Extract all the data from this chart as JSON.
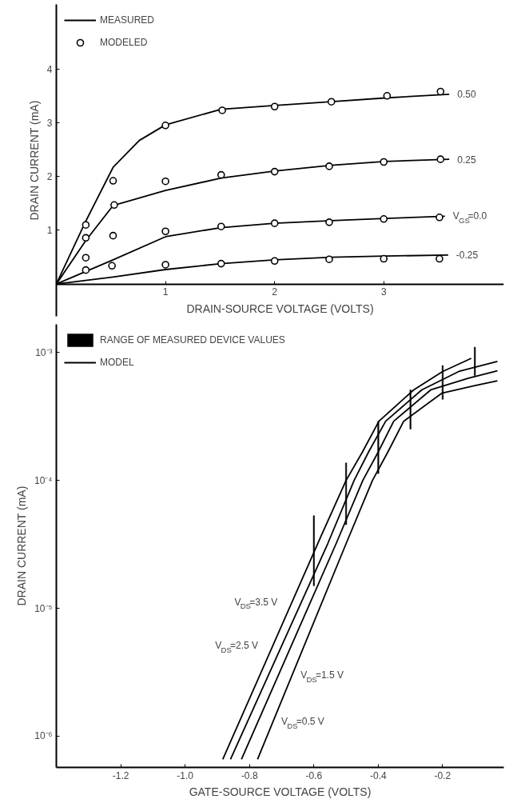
{
  "chart_data": [
    {
      "type": "line",
      "xlabel": "DRAIN-SOURCE VOLTAGE (VOLTS)",
      "ylabel": "DRAIN CURRENT (mA)",
      "xlim": [
        0,
        4.1
      ],
      "ylim": [
        -0.6,
        5.2
      ],
      "xticks": [
        1,
        2,
        3
      ],
      "yticks": [
        1,
        2,
        3,
        4
      ],
      "grid": false,
      "legend": "top left",
      "line_style": "solid",
      "series": [
        {
          "name": "MEASURED",
          "marker": "none",
          "color": "#000000",
          "x": [
            0,
            0.27,
            0.52,
            0.76,
            1.0,
            1.51,
            2.0,
            2.52,
            3.01,
            3.6
          ],
          "values": [
            0,
            1.17,
            2.17,
            2.67,
            2.96,
            3.25,
            3.32,
            3.39,
            3.46,
            3.53
          ]
        },
        {
          "marker": "none",
          "color": "#000000",
          "x": [
            0,
            0.27,
            0.52,
            1.0,
            1.51,
            2.0,
            2.52,
            3.01,
            3.6
          ],
          "values": [
            0,
            0.81,
            1.46,
            1.74,
            1.97,
            2.1,
            2.21,
            2.28,
            2.32
          ]
        },
        {
          "marker": "none",
          "color": "#000000",
          "x": [
            0,
            0.52,
            1.0,
            1.51,
            2.0,
            2.52,
            3.01,
            3.56
          ],
          "values": [
            0,
            0.45,
            0.88,
            1.05,
            1.13,
            1.18,
            1.22,
            1.26
          ]
        },
        {
          "marker": "none",
          "color": "#000000",
          "x": [
            0,
            0.52,
            1.0,
            1.51,
            2.0,
            2.52,
            3.01,
            3.59
          ],
          "values": [
            0,
            0.13,
            0.27,
            0.38,
            0.45,
            0.5,
            0.52,
            0.54
          ]
        },
        {
          "name": "MODELED",
          "type": "scatter",
          "marker": "circle",
          "color": "#000000",
          "x": [
            0.27,
            0.52,
            1.0,
            1.52,
            2.0,
            2.52,
            3.03,
            3.52
          ],
          "values": [
            1.1,
            1.92,
            2.95,
            3.23,
            3.3,
            3.39,
            3.5,
            3.58
          ]
        },
        {
          "type": "scatter",
          "marker": "circle",
          "color": "#000000",
          "x": [
            0.27,
            0.53,
            1.0,
            1.51,
            2.0,
            2.5,
            3.0,
            3.52
          ],
          "values": [
            0.86,
            1.47,
            1.91,
            2.03,
            2.09,
            2.19,
            2.27,
            2.32
          ]
        },
        {
          "type": "scatter",
          "marker": "circle",
          "color": "#000000",
          "x": [
            0.27,
            0.52,
            1.0,
            1.51,
            2.0,
            2.5,
            3.0,
            3.51
          ],
          "values": [
            0.49,
            0.9,
            0.98,
            1.07,
            1.13,
            1.15,
            1.21,
            1.24
          ]
        },
        {
          "type": "scatter",
          "marker": "circle",
          "color": "#000000",
          "x": [
            0.27,
            0.51,
            1.0,
            1.51,
            2.0,
            2.5,
            3.0,
            3.51
          ],
          "values": [
            0.26,
            0.34,
            0.36,
            0.38,
            0.43,
            0.46,
            0.47,
            0.47
          ]
        }
      ],
      "annotations": [
        {
          "text": "0.50",
          "x": 3.6,
          "y": 3.53
        },
        {
          "text": "0.25",
          "x": 3.6,
          "y": 2.32
        },
        {
          "text": "V$_{GS}$=0.0",
          "x": 3.56,
          "y": 1.26
        },
        {
          "text": "-0.25",
          "x": 3.59,
          "y": 0.54
        }
      ]
    },
    {
      "type": "line",
      "xlabel": "GATE-SOURCE VOLTAGE (VOLTS)",
      "ylabel": "DRAIN CURRENT (mA)",
      "log": "y",
      "xlim": [
        -1.4,
        -0.01
      ],
      "ylim": [
        5.7e-07,
        0.00166
      ],
      "xticks": [
        {
          "value": -1.2,
          "label": "-1.2"
        },
        {
          "value": -1.0,
          "label": "-1.0"
        },
        {
          "value": -0.8,
          "label": "-0.8"
        },
        {
          "value": -0.6,
          "label": "-0.6"
        },
        {
          "value": -0.4,
          "label": "-0.4"
        },
        {
          "value": -0.2,
          "label": "-0.2"
        }
      ],
      "yticks": [
        {
          "value": 1e-06,
          "label": "10⁻⁶"
        },
        {
          "value": 1e-05,
          "label": "10⁻⁵"
        },
        {
          "value": 0.0001,
          "label": "10⁻⁴"
        },
        {
          "value": 0.001,
          "label": "10⁻³"
        }
      ],
      "grid": false,
      "legend": "top left",
      "line_style": "solid",
      "series": [
        {
          "name": "RANGE OF MEASURED DEVICE VALUES",
          "type": "bar",
          "base": [
            1.5e-05,
            4.5e-05,
            0.000113,
            0.000252,
            0.00043,
            0.00066
          ],
          "color": "#000000",
          "x": [
            -0.6,
            -0.5,
            -0.4,
            -0.3,
            -0.2,
            -0.1
          ],
          "values": [
            3.8e-05,
            9.2e-05,
            0.000175,
            0.000258,
            0.00036,
            0.00044
          ]
        },
        {
          "name": "MODEL",
          "marker": "none",
          "color": "#000000",
          "x": [
            -0.883,
            -0.577,
            -0.5,
            -0.449,
            -0.398,
            -0.29,
            -0.2,
            -0.111
          ],
          "values": [
            6.6e-07,
            3.7e-05,
            0.0001,
            0.000167,
            0.00029,
            0.00051,
            0.00071,
            0.0009
          ]
        },
        {
          "marker": "none",
          "color": "#000000",
          "x": [
            -0.859,
            -0.557,
            -0.475,
            -0.43,
            -0.377,
            -0.265,
            -0.15,
            -0.03
          ],
          "values": [
            6.6e-07,
            3.2e-05,
            0.0001,
            0.000167,
            0.00029,
            0.00051,
            0.00071,
            0.00085
          ]
        },
        {
          "marker": "none",
          "color": "#000000",
          "x": [
            -0.825,
            -0.531,
            -0.448,
            -0.4,
            -0.352,
            -0.237,
            -0.12,
            -0.03
          ],
          "values": [
            6.6e-07,
            3.2e-05,
            0.0001,
            0.000167,
            0.00029,
            0.00051,
            0.00063,
            0.00072
          ]
        },
        {
          "marker": "none",
          "color": "#000000",
          "x": [
            -0.775,
            -0.5,
            -0.418,
            -0.37,
            -0.321,
            -0.203,
            -0.1,
            -0.03
          ],
          "values": [
            6.6e-07,
            3.2e-05,
            0.0001,
            0.000167,
            0.00029,
            0.00048,
            0.00055,
            0.0006
          ]
        }
      ],
      "annotations": [
        {
          "text": "V$_{DS}$=3.5 V",
          "x": -0.668,
          "y": 1.12e-05
        },
        {
          "text": "V$_{DS}$=2.5 V",
          "x": -0.728,
          "y": 5.1e-06
        },
        {
          "text": "V$_{DS}$=1.5 V",
          "x": -0.666,
          "y": 3e-06
        },
        {
          "text": "V$_{DS}$=0.5 V",
          "x": -0.726,
          "y": 1.3e-06
        }
      ]
    }
  ]
}
